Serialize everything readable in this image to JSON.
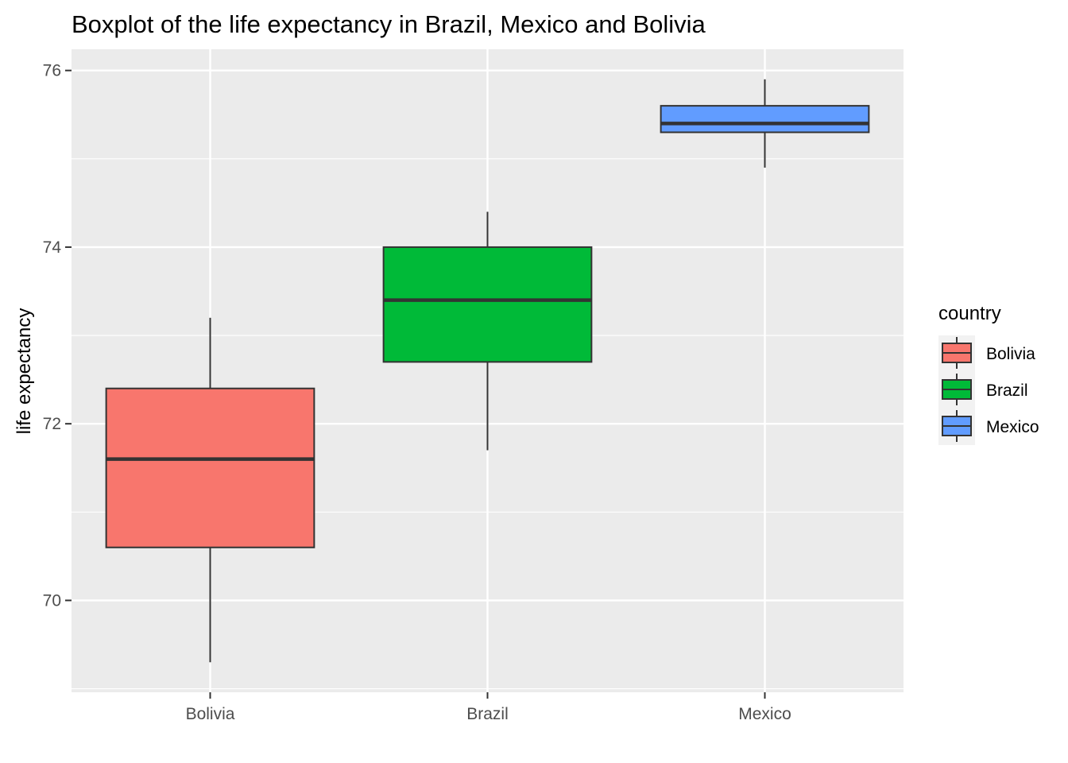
{
  "chart_data": {
    "type": "boxplot",
    "title": "Boxplot of the life expectancy in Brazil, Mexico and Bolivia",
    "xlabel": "",
    "ylabel": "life expectancy",
    "categories": [
      "Bolivia",
      "Brazil",
      "Mexico"
    ],
    "boxes": [
      {
        "name": "Bolivia",
        "min": 69.3,
        "q1": 70.6,
        "median": 71.6,
        "q3": 72.4,
        "max": 73.2,
        "color": "#F8766D"
      },
      {
        "name": "Brazil",
        "min": 71.7,
        "q1": 72.7,
        "median": 73.4,
        "q3": 74.0,
        "max": 74.4,
        "color": "#00BA38"
      },
      {
        "name": "Mexico",
        "min": 74.9,
        "q1": 75.3,
        "median": 75.4,
        "q3": 75.6,
        "max": 75.9,
        "color": "#619CFF"
      }
    ],
    "ylim": [
      68.96,
      76.24
    ],
    "yticks": [
      70,
      72,
      74,
      76
    ],
    "ytick_labels": [
      "70",
      "72",
      "74",
      "76"
    ],
    "grid": true,
    "legend": {
      "title": "country",
      "position": "right",
      "entries": [
        "Bolivia",
        "Brazil",
        "Mexico"
      ]
    },
    "colors": {
      "panel_background": "#EBEBEB",
      "grid": "#FFFFFF",
      "box_outline": "#333333",
      "tick_label": "#4D4D4D"
    }
  }
}
